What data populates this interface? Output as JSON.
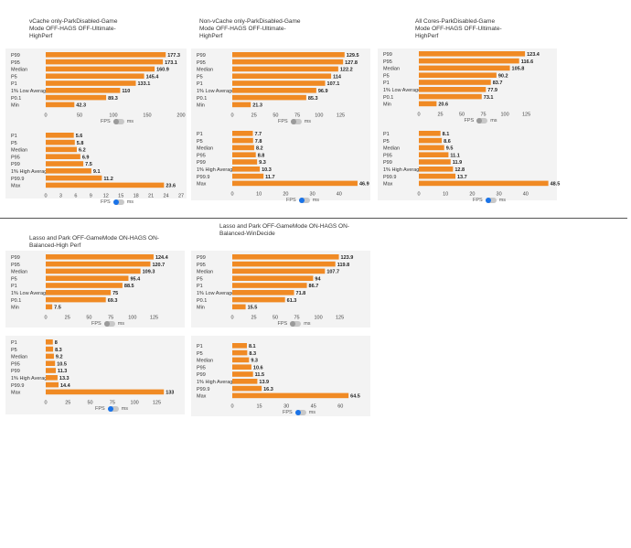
{
  "toggle": {
    "fps_label": "FPS",
    "ms_label": "ms"
  },
  "chart_data": [
    {
      "type": "bar",
      "orientation": "horizontal",
      "title": "vCache only-ParkDisabled-Game\nMode OFF-HAGS OFF-Ultimate-\nHighPerf",
      "categories": [
        "P99",
        "P95",
        "Median",
        "P5",
        "P1",
        "1% Low Average",
        "P0.1",
        "Min"
      ],
      "values": [
        177.3,
        173.1,
        160.9,
        145.4,
        133.1,
        110,
        89.3,
        42.3
      ],
      "xlim": [
        0,
        200
      ],
      "ticks": [
        0,
        50,
        100,
        150,
        200
      ],
      "toggle": "off"
    },
    {
      "type": "bar",
      "orientation": "horizontal",
      "title": "",
      "categories": [
        "P1",
        "P5",
        "Median",
        "P95",
        "P99",
        "1% High Average",
        "P99.9",
        "Max"
      ],
      "values": [
        5.6,
        5.8,
        6.2,
        6.9,
        7.5,
        9.1,
        11.2,
        23.6
      ],
      "xlim": [
        0,
        27
      ],
      "ticks": [
        0,
        3,
        6,
        9,
        12,
        15,
        18,
        21,
        24,
        27
      ],
      "toggle": "on"
    },
    {
      "type": "bar",
      "orientation": "horizontal",
      "title": "Non-vCache only-ParkDisabled-Game\nMode OFF-HAGS OFF-Ultimate-\nHighPerf",
      "categories": [
        "P99",
        "P95",
        "Median",
        "P5",
        "P1",
        "1% Low Average",
        "P0.1",
        "Min"
      ],
      "values": [
        129.5,
        127.8,
        122.2,
        114,
        107.1,
        96.9,
        85.3,
        21.3
      ],
      "xlim": [
        0,
        135
      ],
      "ticks": [
        0,
        25,
        50,
        75,
        100,
        125
      ],
      "toggle": "off"
    },
    {
      "type": "bar",
      "orientation": "horizontal",
      "title": "",
      "categories": [
        "P1",
        "P5",
        "Median",
        "P95",
        "P99",
        "1% High Average",
        "P99.9",
        "Max"
      ],
      "values": [
        7.7,
        7.8,
        8.2,
        8.8,
        9.3,
        10.3,
        11.7,
        46.9
      ],
      "xlim": [
        0,
        50
      ],
      "ticks": [
        0,
        10,
        20,
        30,
        40
      ],
      "toggle": "on"
    },
    {
      "type": "bar",
      "orientation": "horizontal",
      "title": "All Cores-ParkDisabled-Game\nMode OFF-HAGS OFF-Ultimate-\nHighPerf",
      "categories": [
        "P99",
        "P95",
        "Median",
        "P5",
        "P1",
        "1% Low Average",
        "P0.1",
        "Min"
      ],
      "values": [
        123.4,
        116.6,
        105.8,
        90.2,
        83.7,
        77.9,
        73.1,
        20.6
      ],
      "xlim": [
        0,
        135
      ],
      "ticks": [
        0,
        25,
        50,
        75,
        100,
        125
      ],
      "toggle": "off"
    },
    {
      "type": "bar",
      "orientation": "horizontal",
      "title": "",
      "categories": [
        "P1",
        "P5",
        "Median",
        "P95",
        "P99",
        "1% High Average",
        "P99.9",
        "Max"
      ],
      "values": [
        8.1,
        8.6,
        9.5,
        11.1,
        11.9,
        12.8,
        13.7,
        48.5
      ],
      "xlim": [
        0,
        50
      ],
      "ticks": [
        0,
        10,
        20,
        30,
        40
      ],
      "toggle": "on"
    },
    {
      "type": "bar",
      "orientation": "horizontal",
      "title": "Lasso and Park OFF-GameMode ON-HAGS ON-\nBalanced-High Perf",
      "categories": [
        "P99",
        "P95",
        "Median",
        "P5",
        "P1",
        "1% Low Average",
        "P0.1",
        "Min"
      ],
      "values": [
        124.4,
        120.7,
        109.3,
        95.4,
        88.5,
        75,
        69.3,
        7.5
      ],
      "xlim": [
        0,
        135
      ],
      "ticks": [
        0,
        25,
        50,
        75,
        100,
        125
      ],
      "toggle": "off"
    },
    {
      "type": "bar",
      "orientation": "horizontal",
      "title": "",
      "categories": [
        "P1",
        "P5",
        "Median",
        "P95",
        "P99",
        "1% High Average",
        "P99.9",
        "Max"
      ],
      "values": [
        8,
        8.3,
        9.2,
        10.5,
        11.3,
        13.3,
        14.4,
        133
      ],
      "xlim": [
        0,
        140
      ],
      "ticks": [
        0,
        25,
        50,
        75,
        100,
        125
      ],
      "toggle": "on"
    },
    {
      "type": "bar",
      "orientation": "horizontal",
      "title": "Lasso and Park OFF-GameMode ON-HAGS ON-\nBalanced-WinDecide",
      "categories": [
        "P99",
        "P95",
        "Median",
        "P5",
        "P1",
        "1% Low Average",
        "P0.1",
        "Min"
      ],
      "values": [
        123.9,
        119.8,
        107.7,
        94,
        86.7,
        71.8,
        61.3,
        15.5
      ],
      "xlim": [
        0,
        135
      ],
      "ticks": [
        0,
        25,
        50,
        75,
        100,
        125
      ],
      "toggle": "off"
    },
    {
      "type": "bar",
      "orientation": "horizontal",
      "title": "",
      "categories": [
        "P1",
        "P5",
        "Median",
        "P95",
        "P99",
        "1% High Average",
        "P99.9",
        "Max"
      ],
      "values": [
        8.1,
        8.3,
        9.3,
        10.6,
        11.5,
        13.9,
        16.3,
        64.5
      ],
      "xlim": [
        0,
        70
      ],
      "ticks": [
        0,
        15,
        30,
        45,
        60
      ],
      "toggle": "on"
    }
  ]
}
